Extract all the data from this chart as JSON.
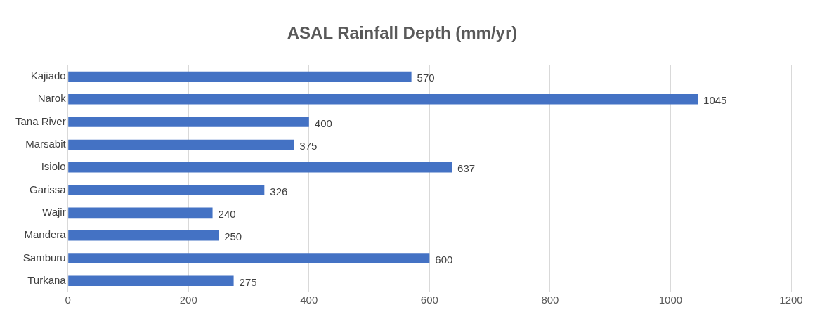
{
  "chart_data": {
    "type": "bar",
    "orientation": "horizontal",
    "title": "ASAL Rainfall Depth (mm/yr)",
    "categories": [
      "Kajiado",
      "Narok",
      "Tana River",
      "Marsabit",
      "Isiolo",
      "Garissa",
      "Wajir",
      "Mandera",
      "Samburu",
      "Turkana"
    ],
    "values": [
      570,
      1045,
      400,
      375,
      637,
      326,
      240,
      250,
      600,
      275
    ],
    "color": "#4472c4",
    "xlim": [
      0,
      1200
    ],
    "xticks": [
      0,
      200,
      400,
      600,
      800,
      1000,
      1200
    ],
    "grid": "x",
    "data_labels": true,
    "legend": false
  }
}
